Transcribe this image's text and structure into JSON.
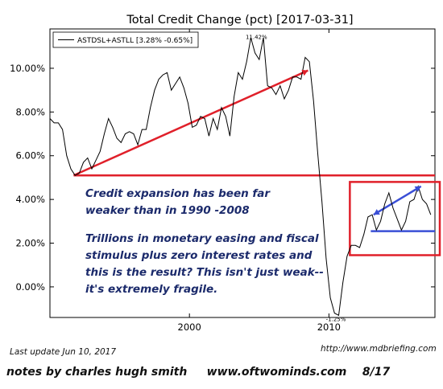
{
  "chart_data": {
    "type": "line",
    "title": "Total Credit Change (pct) [2017-03-31]",
    "xlabel": "",
    "ylabel": "",
    "xlim": [
      1990.0,
      2017.6
    ],
    "ylim": [
      -1.4,
      11.8
    ],
    "grid": false,
    "legend_position": "top-left",
    "x_ticks": [
      {
        "value": 2000,
        "label": "2000"
      },
      {
        "value": 2010,
        "label": "2010"
      }
    ],
    "y_ticks": [
      {
        "value": 0,
        "label": "0.00%"
      },
      {
        "value": 2,
        "label": "2.00%"
      },
      {
        "value": 4,
        "label": "4.00%"
      },
      {
        "value": 6,
        "label": "6.00%"
      },
      {
        "value": 8,
        "label": "8.00%"
      },
      {
        "value": 10,
        "label": "10.00%"
      }
    ],
    "series": [
      {
        "name": "ASTDSL+ASTLL [3.28% -0.65%]",
        "color": "#000000",
        "x": [
          1990.0,
          1990.3,
          1990.6,
          1990.9,
          1991.2,
          1991.5,
          1991.8,
          1992.1,
          1992.4,
          1992.7,
          1993.0,
          1993.3,
          1993.6,
          1993.9,
          1994.2,
          1994.5,
          1994.8,
          1995.1,
          1995.4,
          1995.7,
          1996.0,
          1996.3,
          1996.6,
          1996.9,
          1997.2,
          1997.5,
          1997.8,
          1998.1,
          1998.4,
          1998.7,
          1999.0,
          1999.3,
          1999.6,
          1999.9,
          2000.2,
          2000.5,
          2000.8,
          2001.1,
          2001.4,
          2001.7,
          2002.0,
          2002.3,
          2002.6,
          2002.9,
          2003.2,
          2003.5,
          2003.8,
          2004.1,
          2004.4,
          2004.7,
          2005.0,
          2005.3,
          2005.6,
          2005.9,
          2006.2,
          2006.5,
          2006.8,
          2007.1,
          2007.4,
          2007.7,
          2008.0,
          2008.3,
          2008.6,
          2008.9,
          2009.2,
          2009.5,
          2009.8,
          2010.1,
          2010.4,
          2010.7,
          2011.0,
          2011.3,
          2011.6,
          2011.9,
          2012.2,
          2012.5,
          2012.8,
          2013.1,
          2013.4,
          2013.7,
          2014.0,
          2014.3,
          2014.6,
          2014.9,
          2015.2,
          2015.5,
          2015.8,
          2016.1,
          2016.4,
          2016.7,
          2017.0,
          2017.3
        ],
        "y": [
          7.7,
          7.5,
          7.5,
          7.2,
          6.0,
          5.4,
          5.1,
          5.2,
          5.7,
          5.9,
          5.4,
          5.8,
          6.2,
          7.0,
          7.7,
          7.3,
          6.8,
          6.6,
          7.0,
          7.1,
          7.0,
          6.5,
          7.2,
          7.2,
          8.2,
          9.0,
          9.5,
          9.7,
          9.8,
          9.0,
          9.3,
          9.6,
          9.1,
          8.4,
          7.3,
          7.4,
          7.8,
          7.7,
          6.9,
          7.7,
          7.2,
          8.2,
          7.8,
          6.9,
          8.7,
          9.8,
          9.5,
          10.3,
          11.4,
          10.7,
          10.4,
          11.4,
          9.2,
          9.1,
          8.8,
          9.2,
          8.6,
          9.0,
          9.6,
          9.6,
          9.5,
          10.5,
          10.3,
          8.5,
          6.1,
          3.9,
          1.3,
          -0.5,
          -1.2,
          -1.3,
          0.2,
          1.4,
          1.9,
          1.9,
          1.8,
          2.4,
          3.2,
          3.3,
          2.6,
          3.0,
          3.8,
          4.3,
          3.6,
          3.1,
          2.6,
          3.0,
          3.9,
          4.0,
          4.6,
          4.0,
          3.8,
          3.3
        ]
      }
    ],
    "annotations": [
      {
        "text": "11.42%",
        "x": 2004.8,
        "y": 11.45
      },
      {
        "text": "-1.25%",
        "x": 2010.5,
        "y": -1.45
      }
    ],
    "overlays": {
      "red_trendline": {
        "x1": 1991.7,
        "y1": 5.1,
        "x2": 2008.5,
        "y2": 9.9,
        "color": "#e0202a"
      },
      "red_horizontal": {
        "y": 5.1,
        "color": "#e0202a"
      },
      "blue_trendline": {
        "x1": 2013.2,
        "y1": 3.3,
        "x2": 2016.6,
        "y2": 4.6,
        "color": "#3a4fd6"
      },
      "blue_horizontal": {
        "x1": 2013.0,
        "x2": 2017.6,
        "y": 2.55,
        "color": "#3a4fd6"
      },
      "red_box": {
        "x1": 2011.5,
        "x2": 2018.0,
        "y_top": 4.8,
        "y_bottom": 1.45,
        "color": "#e0202a"
      }
    }
  },
  "notes": {
    "paragraph1": [
      "Credit expansion has been far",
      "weaker than in 1990 -2008"
    ],
    "paragraph2": [
      "Trillions in monetary easing and fiscal",
      "stimulus plus zero interest rates and",
      "this is the result? This isn't just weak--",
      "it's extremely fragile."
    ]
  },
  "footer": {
    "last_update": "Last update Jun 10, 2017",
    "source_url": "http://www.mdbriefing.com",
    "byline": "notes by charles hugh smith     www.oftwominds.com    8/17"
  }
}
